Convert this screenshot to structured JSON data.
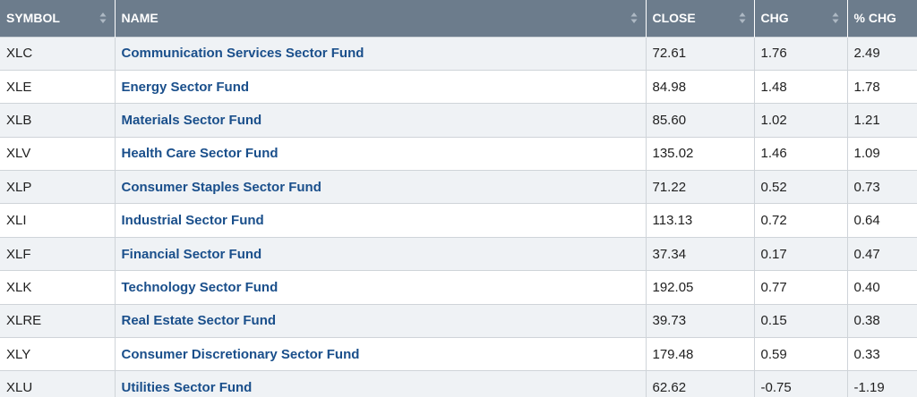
{
  "table": {
    "headers": [
      {
        "label": "SYMBOL",
        "key": "symbol"
      },
      {
        "label": "NAME",
        "key": "name"
      },
      {
        "label": "CLOSE",
        "key": "close"
      },
      {
        "label": "CHG",
        "key": "chg"
      },
      {
        "label": "% CHG",
        "key": "pct_chg"
      }
    ],
    "rows": [
      {
        "symbol": "XLC",
        "name": "Communication Services Sector Fund",
        "close": "72.61",
        "chg": "1.76",
        "pct_chg": "2.49"
      },
      {
        "symbol": "XLE",
        "name": "Energy Sector Fund",
        "close": "84.98",
        "chg": "1.48",
        "pct_chg": "1.78"
      },
      {
        "symbol": "XLB",
        "name": "Materials Sector Fund",
        "close": "85.60",
        "chg": "1.02",
        "pct_chg": "1.21"
      },
      {
        "symbol": "XLV",
        "name": "Health Care Sector Fund",
        "close": "135.02",
        "chg": "1.46",
        "pct_chg": "1.09"
      },
      {
        "symbol": "XLP",
        "name": "Consumer Staples Sector Fund",
        "close": "71.22",
        "chg": "0.52",
        "pct_chg": "0.73"
      },
      {
        "symbol": "XLI",
        "name": "Industrial Sector Fund",
        "close": "113.13",
        "chg": "0.72",
        "pct_chg": "0.64"
      },
      {
        "symbol": "XLF",
        "name": "Financial Sector Fund",
        "close": "37.34",
        "chg": "0.17",
        "pct_chg": "0.47"
      },
      {
        "symbol": "XLK",
        "name": "Technology Sector Fund",
        "close": "192.05",
        "chg": "0.77",
        "pct_chg": "0.40"
      },
      {
        "symbol": "XLRE",
        "name": "Real Estate Sector Fund",
        "close": "39.73",
        "chg": "0.15",
        "pct_chg": "0.38"
      },
      {
        "symbol": "XLY",
        "name": "Consumer Discretionary Sector Fund",
        "close": "179.48",
        "chg": "0.59",
        "pct_chg": "0.33"
      },
      {
        "symbol": "XLU",
        "name": "Utilities Sector Fund",
        "close": "62.62",
        "chg": "-0.75",
        "pct_chg": "-1.19"
      }
    ]
  },
  "icons": {
    "sort": "sort-arrows-icon"
  },
  "colors": {
    "header_bg": "#6c7c8c",
    "header_text": "#ffffff",
    "row_alt": "#eff2f5",
    "link": "#1a4f8b"
  }
}
